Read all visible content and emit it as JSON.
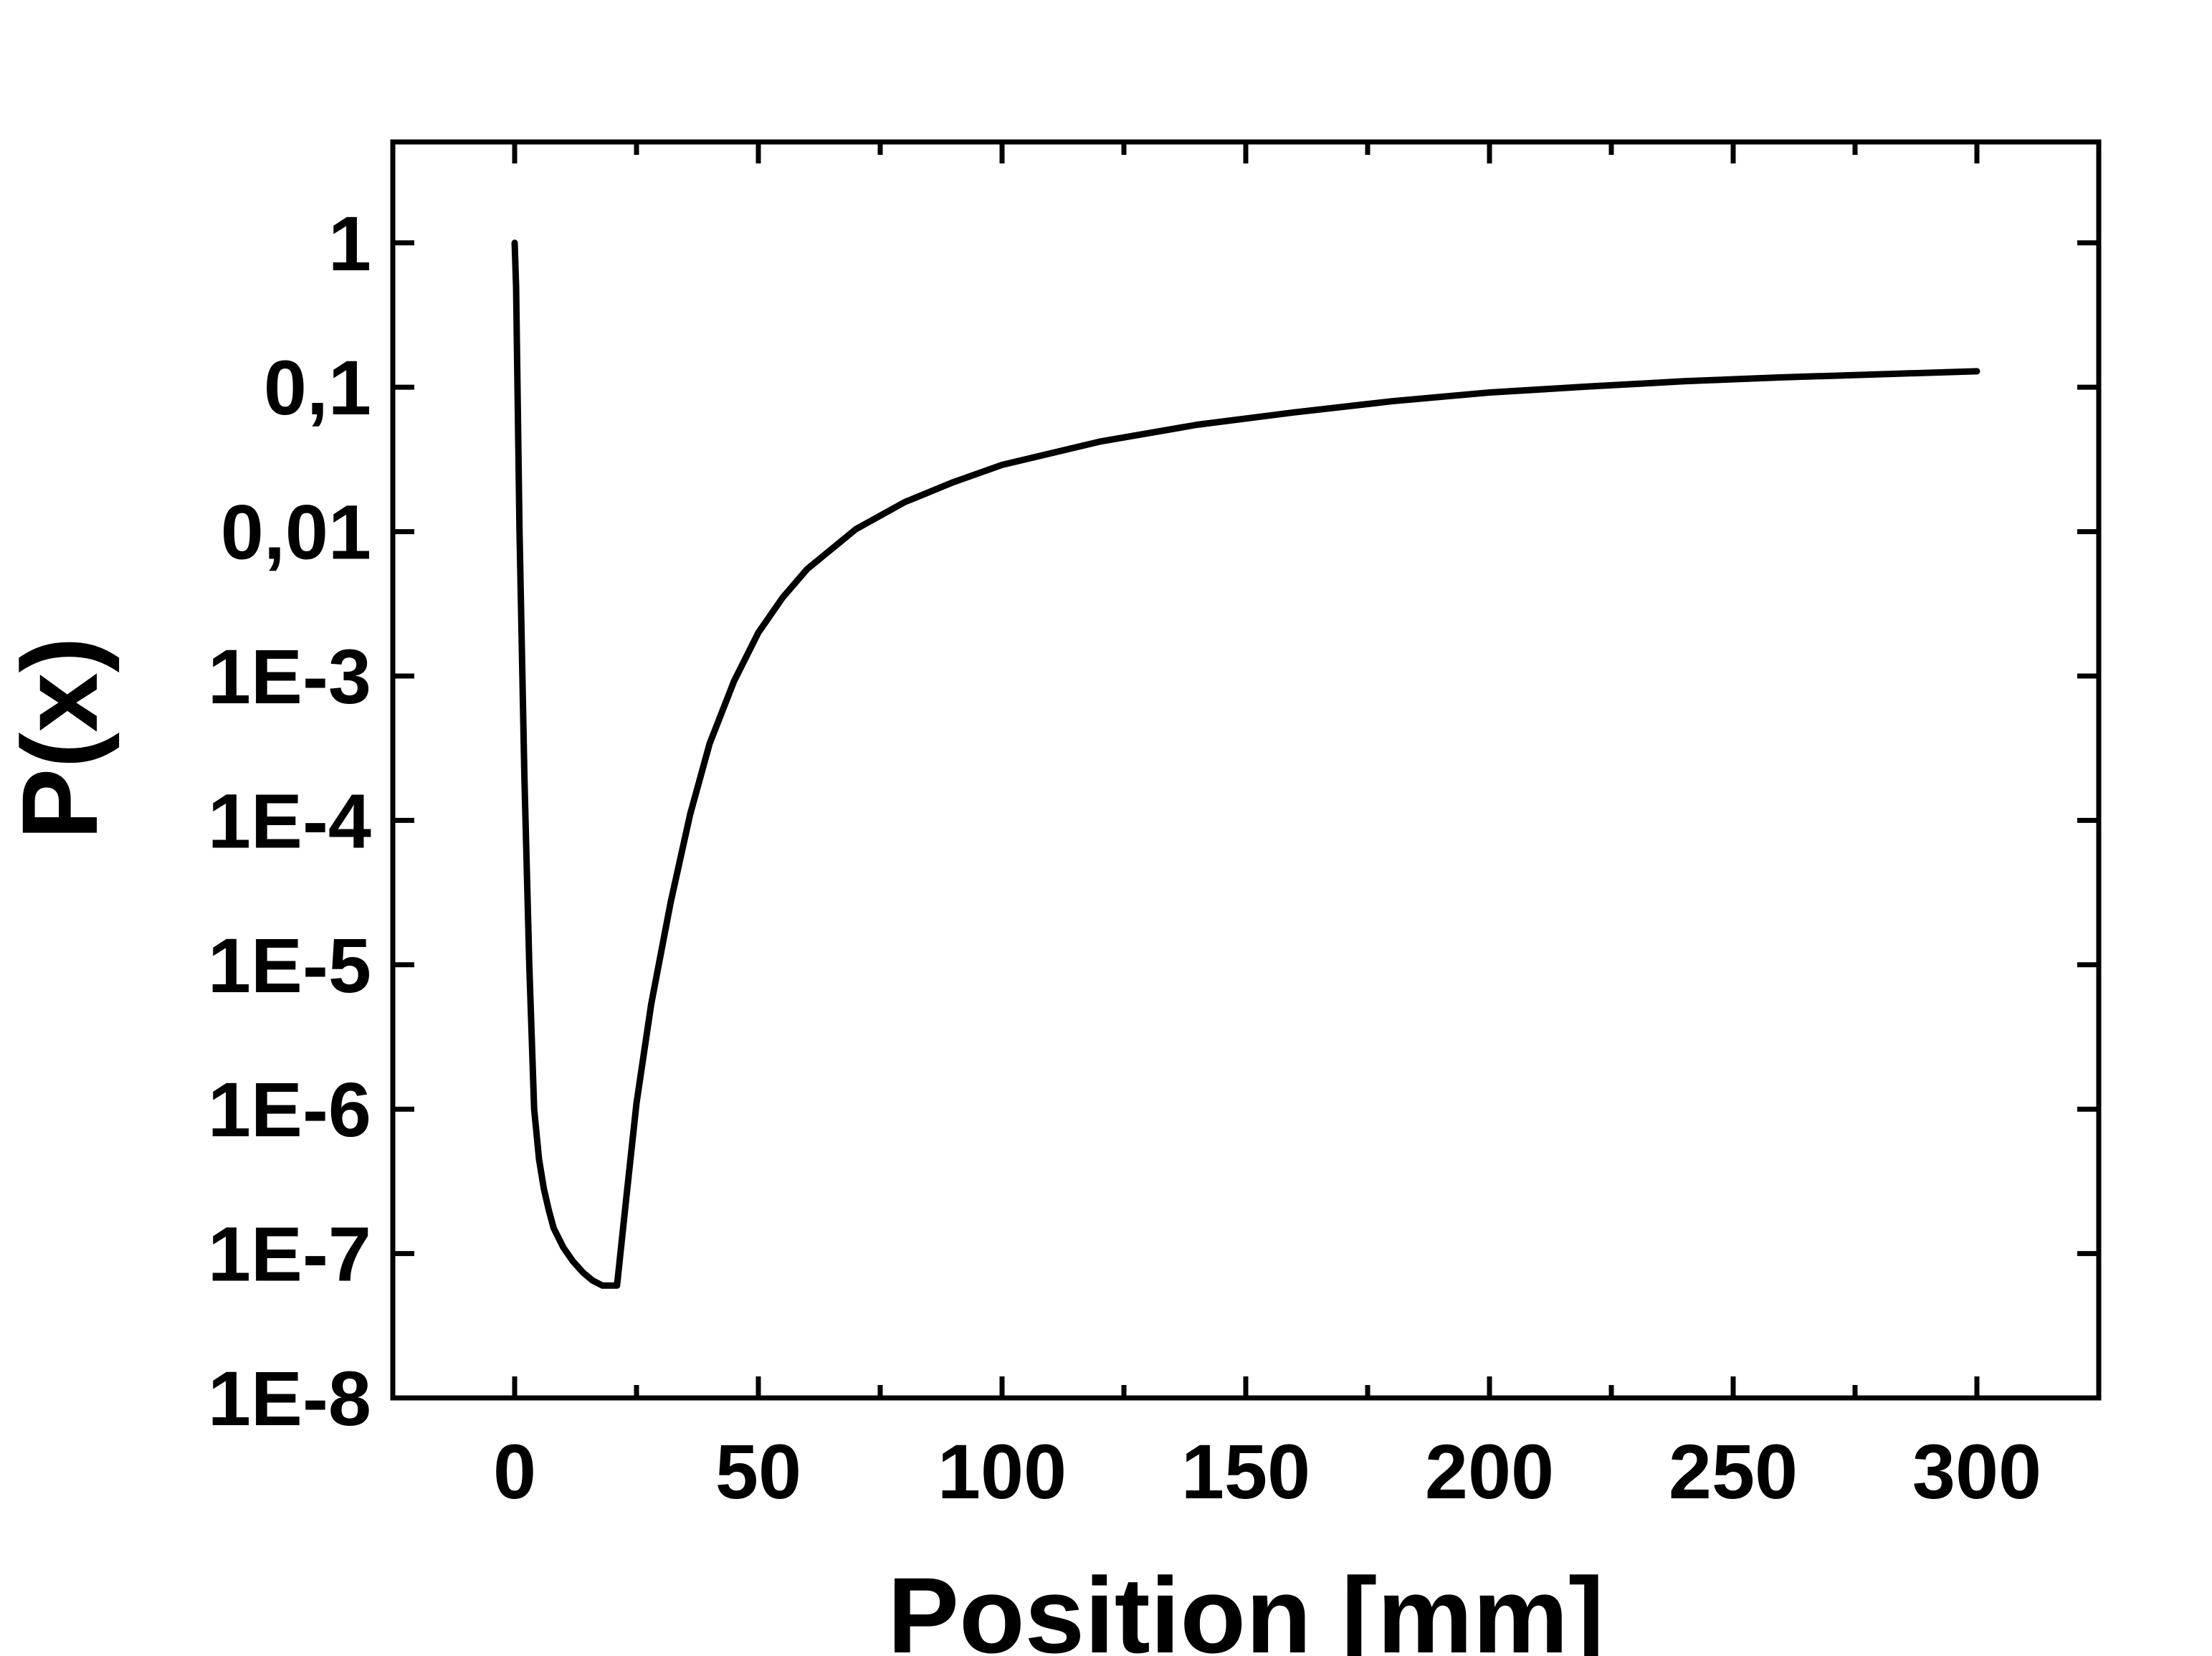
{
  "chart_data": {
    "type": "line",
    "title": "",
    "xlabel": "Position [mm]",
    "ylabel": "P(x)",
    "xlim": [
      -25,
      325
    ],
    "ylim": [
      1e-08,
      5
    ],
    "y_scale": "log",
    "grid": false,
    "legend": "none",
    "x_ticks": [
      {
        "value": 0,
        "label": "0"
      },
      {
        "value": 50,
        "label": "50"
      },
      {
        "value": 100,
        "label": "100"
      },
      {
        "value": 150,
        "label": "150"
      },
      {
        "value": 200,
        "label": "200"
      },
      {
        "value": 250,
        "label": "250"
      },
      {
        "value": 300,
        "label": "300"
      }
    ],
    "x_minor_ticks": [
      25,
      75,
      125,
      175,
      225,
      275
    ],
    "y_ticks": [
      {
        "value": 1,
        "label": "1"
      },
      {
        "value": 0.1,
        "label": "0,1"
      },
      {
        "value": 0.01,
        "label": "0,01"
      },
      {
        "value": 0.001,
        "label": "1E-3"
      },
      {
        "value": 0.0001,
        "label": "1E-4"
      },
      {
        "value": 1e-05,
        "label": "1E-5"
      },
      {
        "value": 1e-06,
        "label": "1E-6"
      },
      {
        "value": 1e-07,
        "label": "1E-7"
      },
      {
        "value": 1e-08,
        "label": "1E-8"
      }
    ],
    "series": [
      {
        "color": "#000000",
        "x": [
          0,
          0.3,
          1.0,
          2.0,
          3.0,
          4.0,
          5.0,
          6.0,
          7.0,
          8.0,
          10.0,
          12.0,
          14.0,
          16.0,
          18.0,
          21.0,
          23.0,
          25.0,
          28.0,
          32.0,
          36.0,
          40.0,
          45.0,
          50.0,
          55.0,
          60.0,
          70.0,
          80.0,
          90.0,
          100.0,
          120.0,
          140.0,
          160.0,
          180.0,
          200.0,
          220.0,
          240.0,
          260.0,
          280.0,
          300.0
        ],
        "y": [
          1,
          0.5,
          0.01,
          0.0002,
          1e-05,
          1e-06,
          4.5e-07,
          2.8e-07,
          2e-07,
          1.5e-07,
          1.1e-07,
          8.8e-08,
          7.4e-08,
          6.5e-08,
          6e-08,
          6e-08,
          2.6e-07,
          1.1e-06,
          5.3e-06,
          2.7e-05,
          0.00011,
          0.00034,
          0.00092,
          0.002,
          0.0035,
          0.0055,
          0.0104,
          0.016,
          0.022,
          0.029,
          0.042,
          0.055,
          0.067,
          0.08,
          0.092,
          0.101,
          0.11,
          0.117,
          0.123,
          0.129
        ]
      }
    ]
  }
}
